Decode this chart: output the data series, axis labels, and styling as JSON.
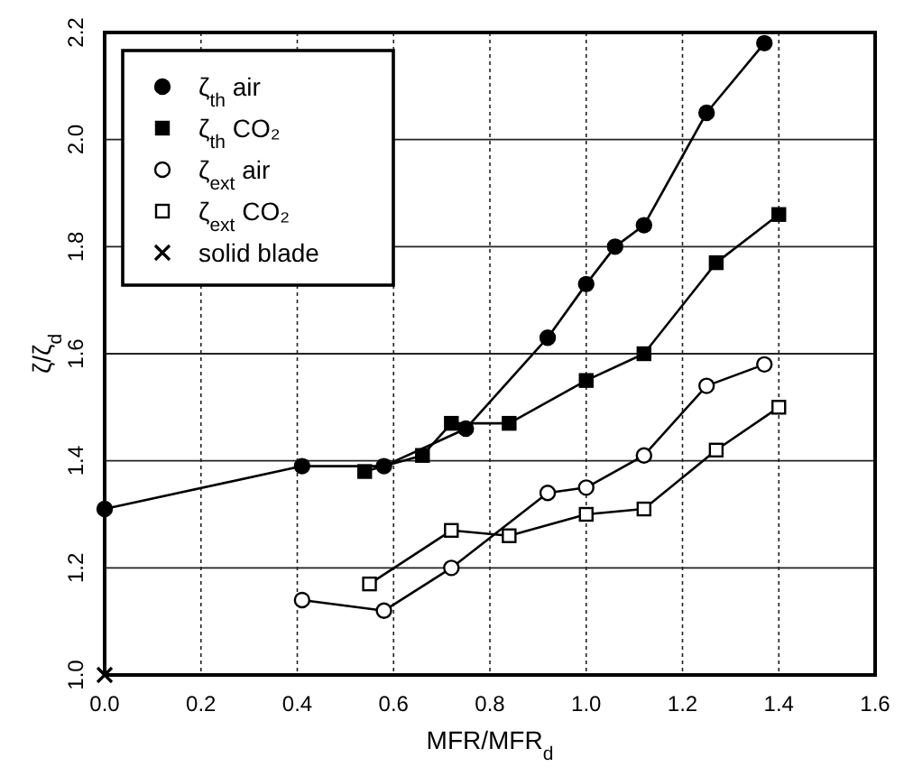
{
  "chart_data": {
    "type": "line",
    "xlabel": "MFR/MFR$_{d}$",
    "ylabel": "ζ/ζ$_{d}$",
    "xlim": [
      0,
      1.6
    ],
    "ylim": [
      1.0,
      2.2
    ],
    "xticks": [
      {
        "value": 0,
        "label": "0.0"
      },
      0.2,
      0.4,
      0.6,
      0.8,
      {
        "value": 1,
        "label": "1.0"
      },
      1.2,
      1.4,
      1.6
    ],
    "yticks": [
      {
        "value": 1,
        "label": "1.0"
      },
      1.2,
      1.4,
      1.6,
      1.8,
      {
        "value": 2,
        "label": "2.0"
      },
      2.2
    ],
    "grid": true,
    "legend": "top left",
    "line_style": "solid",
    "series": [
      {
        "name": "ζ$_{th}$ air",
        "color": "#000000",
        "marker": "circle",
        "x": [
          0,
          0.41,
          0.58,
          0.75,
          0.92,
          1.0,
          1.06,
          1.12,
          1.25,
          1.37
        ],
        "values": [
          1.31,
          1.39,
          1.39,
          1.46,
          1.63,
          1.73,
          1.8,
          1.84,
          2.05,
          2.18
        ]
      },
      {
        "name": "ζ$_{th}$ CO₂",
        "color": "#000000",
        "marker": "square",
        "x": [
          0.54,
          0.66,
          0.72,
          0.84,
          1.0,
          1.12,
          1.27,
          1.4
        ],
        "values": [
          1.38,
          1.41,
          1.47,
          1.47,
          1.55,
          1.6,
          1.77,
          1.86
        ]
      },
      {
        "name": "ζ$_{ext}$ air",
        "color": "#000000",
        "marker": "circle",
        "x": [
          0.41,
          0.58,
          0.72,
          0.92,
          1.0,
          1.12,
          1.25,
          1.37
        ],
        "values": [
          1.14,
          1.12,
          1.2,
          1.34,
          1.35,
          1.41,
          1.54,
          1.58
        ]
      },
      {
        "name": "ζ$_{ext}$ CO₂",
        "color": "#000000",
        "marker": "square",
        "x": [
          0.55,
          0.72,
          0.84,
          1.0,
          1.12,
          1.27,
          1.4
        ],
        "values": [
          1.17,
          1.27,
          1.26,
          1.3,
          1.31,
          1.42,
          1.5
        ]
      },
      {
        "name": "solid blade",
        "type": "scatter",
        "color": "#000000",
        "marker": "cross",
        "x": [
          0
        ],
        "values": [
          1.0
        ]
      }
    ]
  }
}
